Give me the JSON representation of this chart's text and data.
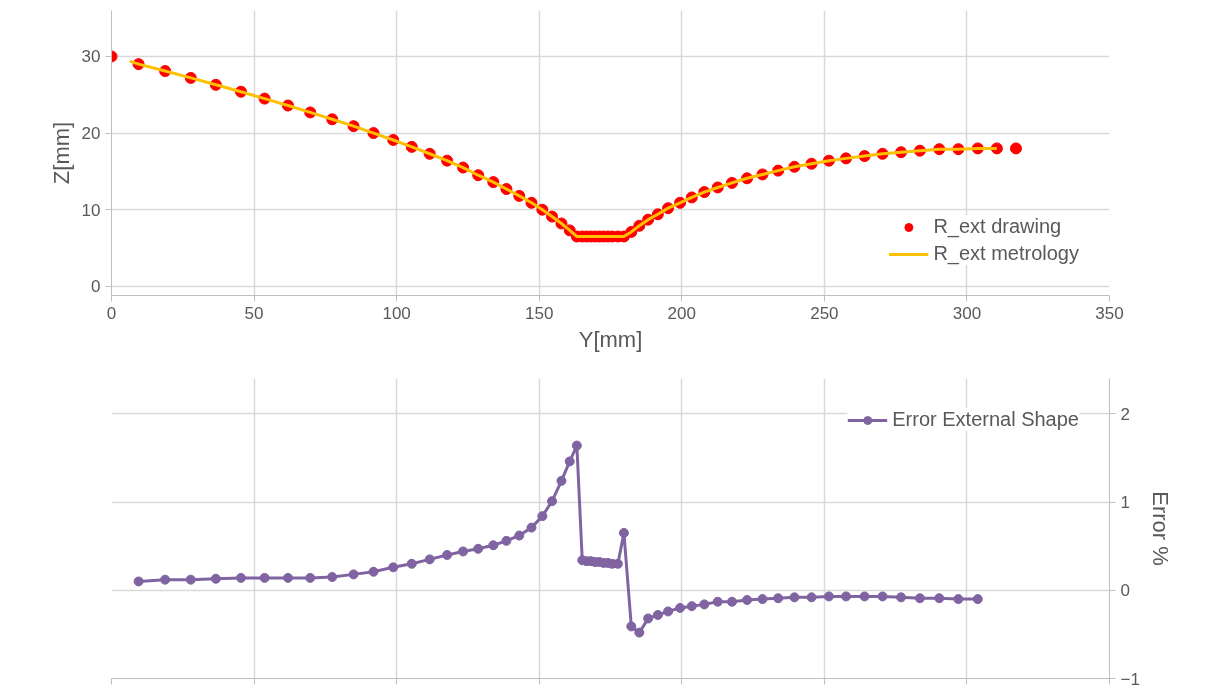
{
  "chart_data": [
    {
      "type": "scatter",
      "xlabel": "Y[mm]",
      "ylabel": "Z[mm]",
      "x": [
        0,
        9.5,
        18.8,
        27.8,
        36.6,
        45.4,
        53.7,
        61.9,
        69.7,
        77.4,
        84.9,
        91.9,
        98.8,
        105.3,
        111.6,
        117.7,
        123.3,
        128.6,
        133.9,
        138.5,
        143.0,
        147.3,
        151.1,
        154.5,
        157.8,
        160.7,
        163.2,
        165.1,
        166.6,
        168.1,
        169.6,
        171.1,
        172.6,
        174.1,
        175.6,
        177.6,
        179.7,
        182.3,
        185.1,
        188.2,
        191.6,
        195.2,
        199.4,
        203.5,
        207.9,
        212.6,
        217.6,
        222.9,
        228.3,
        233.8,
        239.5,
        245.5,
        251.6,
        257.6,
        264.1,
        270.4,
        276.9,
        283.5,
        290.3,
        297.0,
        303.8,
        310.5,
        317.2
      ],
      "series": [
        {
          "name": "R_ext drawing",
          "color": "#ff0000",
          "marker": "circle",
          "values": [
            30,
            29.0,
            28.1,
            27.2,
            26.3,
            25.4,
            24.5,
            23.6,
            22.7,
            21.8,
            20.9,
            20.0,
            19.1,
            18.2,
            17.3,
            16.4,
            15.5,
            14.5,
            13.6,
            12.7,
            11.8,
            10.9,
            10.0,
            9.1,
            8.2,
            7.3,
            6.5,
            6.5,
            6.5,
            6.5,
            6.5,
            6.5,
            6.5,
            6.5,
            6.5,
            6.5,
            6.5,
            7.1,
            7.9,
            8.7,
            9.4,
            10.2,
            10.9,
            11.6,
            12.3,
            12.9,
            13.5,
            14.1,
            14.6,
            15.1,
            15.6,
            16.0,
            16.4,
            16.7,
            17.0,
            17.3,
            17.5,
            17.7,
            17.9,
            17.9,
            18.0,
            18.0,
            18.0
          ]
        },
        {
          "name": "R_ext metrology",
          "type": "line",
          "color": "#ffc000",
          "marker": "none",
          "x": [
            6.4,
            9.5,
            18.8,
            27.8,
            36.6,
            45.4,
            53.7,
            61.9,
            69.7,
            77.4,
            84.9,
            91.9,
            98.8,
            105.3,
            111.6,
            117.7,
            123.3,
            128.6,
            133.9,
            138.5,
            143.0,
            147.3,
            151.1,
            154.5,
            157.8,
            160.7,
            163.2,
            165.1,
            166.6,
            168.1,
            169.6,
            171.1,
            172.6,
            174.1,
            175.6,
            177.6,
            179.7,
            182.3,
            185.1,
            188.2,
            191.6,
            195.2,
            199.4,
            203.5,
            207.9,
            212.6,
            217.6,
            222.9,
            228.3,
            233.8,
            239.5,
            245.5,
            251.6,
            257.6,
            264.1,
            270.4,
            276.9,
            283.5,
            290.3,
            297.0,
            303.8,
            310.5
          ],
          "values": [
            29.4,
            29.0,
            28.1,
            27.2,
            26.3,
            25.4,
            24.5,
            23.6,
            22.7,
            21.8,
            20.9,
            20.0,
            19.1,
            18.2,
            17.3,
            16.4,
            15.5,
            14.5,
            13.6,
            12.7,
            11.8,
            10.9,
            10.0,
            9.1,
            8.2,
            7.3,
            6.5,
            6.5,
            6.5,
            6.5,
            6.5,
            6.5,
            6.5,
            6.5,
            6.5,
            6.5,
            6.5,
            7.1,
            7.9,
            8.7,
            9.4,
            10.2,
            10.9,
            11.6,
            12.3,
            12.9,
            13.5,
            14.1,
            14.6,
            15.1,
            15.6,
            16.0,
            16.4,
            16.7,
            17.0,
            17.3,
            17.5,
            17.7,
            17.9,
            17.9,
            18.0,
            18.0
          ]
        }
      ],
      "xlim": [
        0,
        350
      ],
      "xticks": [
        0,
        50,
        100,
        150,
        200,
        250,
        300,
        350
      ],
      "ylim": [
        -1.2,
        36
      ],
      "yticks": [
        0,
        10,
        20,
        30
      ],
      "grid": true,
      "legend": "bottom right"
    },
    {
      "type": "line",
      "y2label": "Error %",
      "marker": "circle",
      "x": [
        9.5,
        18.8,
        27.8,
        36.6,
        45.4,
        53.7,
        61.9,
        69.7,
        77.4,
        84.9,
        91.9,
        98.8,
        105.3,
        111.6,
        117.7,
        123.3,
        128.6,
        133.9,
        138.5,
        143.0,
        147.3,
        151.1,
        154.5,
        157.8,
        160.7,
        163.2,
        165.1,
        166.6,
        168.1,
        169.6,
        171.1,
        172.6,
        174.1,
        175.6,
        177.6,
        179.7,
        182.3,
        185.1,
        188.2,
        191.6,
        195.2,
        199.4,
        203.5,
        207.9,
        212.6,
        217.6,
        222.9,
        228.3,
        233.8,
        239.5,
        245.5,
        251.6,
        257.6,
        264.1,
        270.4,
        276.9,
        283.5,
        290.3,
        297.0,
        303.8
      ],
      "series": [
        {
          "name": "Error External Shape",
          "color": "#8064a2",
          "axis": "y2",
          "values": [
            0.1,
            0.12,
            0.12,
            0.13,
            0.14,
            0.14,
            0.14,
            0.14,
            0.15,
            0.18,
            0.21,
            0.26,
            0.3,
            0.35,
            0.4,
            0.44,
            0.47,
            0.51,
            0.56,
            0.62,
            0.71,
            0.84,
            1.01,
            1.24,
            1.46,
            1.64,
            0.34,
            0.33,
            0.33,
            0.32,
            0.32,
            0.31,
            0.31,
            0.3,
            0.3,
            0.65,
            -0.41,
            -0.48,
            -0.32,
            -0.28,
            -0.24,
            -0.2,
            -0.18,
            -0.16,
            -0.13,
            -0.13,
            -0.11,
            -0.1,
            -0.09,
            -0.08,
            -0.08,
            -0.07,
            -0.07,
            -0.07,
            -0.07,
            -0.08,
            -0.09,
            -0.09,
            -0.1,
            -0.1
          ]
        }
      ],
      "xlim": [
        0,
        350
      ],
      "xticks": [
        0,
        50,
        100,
        150,
        200,
        250,
        300,
        350
      ],
      "y2lim": [
        -1,
        2.4
      ],
      "y2ticks": [
        -1,
        0,
        1,
        2
      ],
      "tick_labels": "y",
      "grid": true,
      "legend": "top right"
    }
  ]
}
